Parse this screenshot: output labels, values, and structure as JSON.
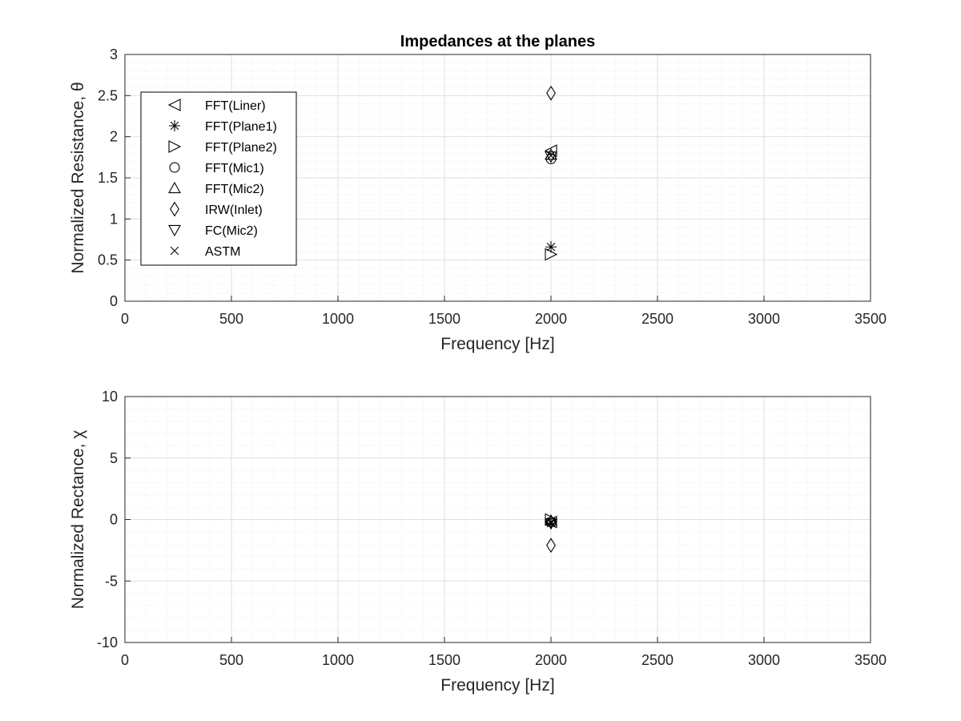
{
  "chart_data": [
    {
      "type": "scatter",
      "title": "Impedances at the planes",
      "xlabel": "Frequency [Hz]",
      "ylabel": "Normalized Resistance, θ",
      "xlim": [
        0,
        3500
      ],
      "ylim": [
        0,
        3
      ],
      "xticks": [
        0,
        500,
        1000,
        1500,
        2000,
        2500,
        3000,
        3500
      ],
      "yticks": [
        0,
        0.5,
        1,
        1.5,
        2,
        2.5,
        3
      ],
      "xtick_labels": [
        "0",
        "500",
        "1000",
        "1500",
        "2000",
        "2500",
        "3000",
        "3500"
      ],
      "ytick_labels": [
        "0",
        "0.5",
        "1",
        "1.5",
        "2",
        "2.5",
        "3"
      ],
      "grid": true,
      "minor_grid": true,
      "legend": "top-left",
      "series": [
        {
          "name": "FFT(Liner)",
          "marker": "triangle-left",
          "x": [
            2000
          ],
          "y": [
            1.83
          ]
        },
        {
          "name": "FFT(Plane1)",
          "marker": "asterisk",
          "x": [
            2000
          ],
          "y": [
            0.66
          ]
        },
        {
          "name": "FFT(Plane2)",
          "marker": "triangle-right",
          "x": [
            2000
          ],
          "y": [
            0.57
          ]
        },
        {
          "name": "FFT(Mic1)",
          "marker": "circle",
          "x": [
            2000
          ],
          "y": [
            1.73
          ]
        },
        {
          "name": "FFT(Mic2)",
          "marker": "triangle-up",
          "x": [
            2000
          ],
          "y": [
            1.78
          ]
        },
        {
          "name": "IRW(Inlet)",
          "marker": "diamond",
          "x": [
            2000
          ],
          "y": [
            2.53
          ]
        },
        {
          "name": "FC(Mic2)",
          "marker": "triangle-down",
          "x": [
            2000
          ],
          "y": [
            1.76
          ]
        },
        {
          "name": "ASTM",
          "marker": "x",
          "x": [
            2000
          ],
          "y": [
            1.77
          ]
        }
      ]
    },
    {
      "type": "scatter",
      "title": "",
      "xlabel": "Frequency [Hz]",
      "ylabel": "Normalized Rectance, χ",
      "xlim": [
        0,
        3500
      ],
      "ylim": [
        -10,
        10
      ],
      "xticks": [
        0,
        500,
        1000,
        1500,
        2000,
        2500,
        3000,
        3500
      ],
      "yticks": [
        -10,
        -5,
        0,
        5,
        10
      ],
      "xtick_labels": [
        "0",
        "500",
        "1000",
        "1500",
        "2000",
        "2500",
        "3000",
        "3500"
      ],
      "ytick_labels": [
        "-10",
        "-5",
        "0",
        "5",
        "10"
      ],
      "grid": true,
      "minor_grid": true,
      "series": [
        {
          "marker": "triangle-left",
          "x": [
            2000
          ],
          "y": [
            -0.2
          ]
        },
        {
          "marker": "asterisk",
          "x": [
            2000
          ],
          "y": [
            -0.3
          ]
        },
        {
          "marker": "triangle-right",
          "x": [
            2000
          ],
          "y": [
            0.0
          ]
        },
        {
          "marker": "circle",
          "x": [
            2000
          ],
          "y": [
            -0.2
          ]
        },
        {
          "marker": "triangle-up",
          "x": [
            2000
          ],
          "y": [
            -0.1
          ]
        },
        {
          "marker": "diamond",
          "x": [
            2000
          ],
          "y": [
            -2.1
          ]
        },
        {
          "marker": "triangle-down",
          "x": [
            2000
          ],
          "y": [
            -0.3
          ]
        },
        {
          "marker": "x",
          "x": [
            2000
          ],
          "y": [
            -0.2
          ]
        }
      ]
    }
  ],
  "colors": {
    "axis": "#262626",
    "grid": "#dfdfdf",
    "minor_grid": "#ececec",
    "marker": "#000000"
  }
}
